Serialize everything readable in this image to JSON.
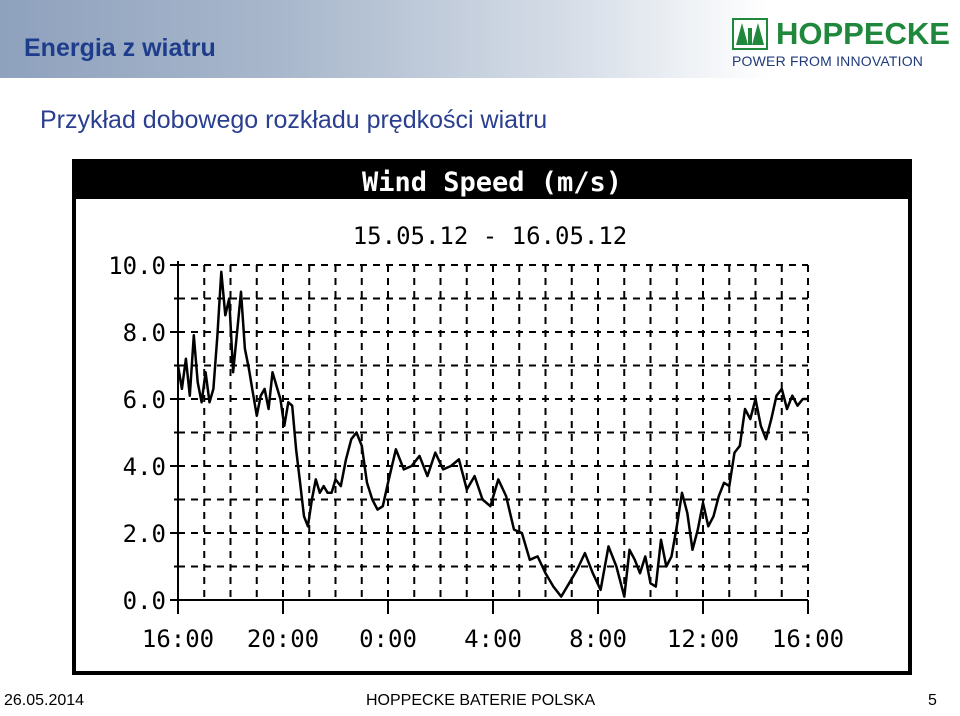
{
  "header": {
    "title": "Energia z wiatru",
    "logo_text": "HOPPECKE",
    "logo_tagline": "POWER FROM INNOVATION",
    "accent_color": "#1e3c8c",
    "logo_color": "#20883c"
  },
  "subtitle": "Przykład dobowego rozkładu prędkości wiatru",
  "footer": {
    "date": "26.05.2014",
    "center": "HOPPECKE BATERIE POLSKA",
    "page": "5"
  },
  "chart_data": {
    "type": "line",
    "title": "Wind Speed (m/s)",
    "subtitle": "15.05.12 - 16.05.12",
    "xlabel": "",
    "ylabel": "",
    "ylim": [
      0,
      10
    ],
    "xlim": [
      0,
      24
    ],
    "y_ticks": [
      "0.0",
      "2.0",
      "4.0",
      "6.0",
      "8.0",
      "10.0"
    ],
    "x_ticks": [
      "16:00",
      "20:00",
      "0:00",
      "4:00",
      "8:00",
      "12:00",
      "16:00"
    ],
    "grid": true,
    "x_hours_since_start": [
      0,
      0.15,
      0.3,
      0.45,
      0.6,
      0.75,
      0.9,
      1.05,
      1.2,
      1.35,
      1.5,
      1.65,
      1.8,
      1.95,
      2.1,
      2.25,
      2.4,
      2.55,
      2.7,
      2.85,
      3.0,
      3.15,
      3.3,
      3.45,
      3.6,
      3.75,
      3.9,
      4.05,
      4.2,
      4.35,
      4.5,
      4.65,
      4.8,
      4.95,
      5.1,
      5.25,
      5.4,
      5.55,
      5.7,
      5.85,
      6.0,
      6.2,
      6.4,
      6.6,
      6.8,
      7.0,
      7.2,
      7.4,
      7.6,
      7.8,
      8.0,
      8.3,
      8.6,
      8.9,
      9.2,
      9.5,
      9.8,
      10.1,
      10.4,
      10.7,
      11.0,
      11.3,
      11.6,
      11.9,
      12.2,
      12.5,
      12.8,
      13.1,
      13.4,
      13.7,
      14.0,
      14.3,
      14.6,
      14.9,
      15.2,
      15.5,
      15.8,
      16.1,
      16.4,
      16.7,
      17.0,
      17.2,
      17.4,
      17.6,
      17.8,
      18.0,
      18.2,
      18.4,
      18.6,
      18.8,
      19.0,
      19.2,
      19.4,
      19.6,
      19.8,
      20.0,
      20.2,
      20.4,
      20.6,
      20.8,
      21.0,
      21.2,
      21.4,
      21.6,
      21.8,
      22.0,
      22.2,
      22.4,
      22.6,
      22.8,
      23.0,
      23.2,
      23.4,
      23.6,
      23.8,
      24.0
    ],
    "y_values": [
      7.0,
      6.3,
      7.2,
      6.1,
      7.9,
      6.5,
      5.9,
      6.8,
      5.9,
      6.3,
      7.9,
      9.8,
      8.5,
      9.0,
      6.8,
      8.0,
      9.2,
      7.5,
      6.9,
      6.2,
      5.5,
      6.1,
      6.3,
      5.7,
      6.8,
      6.4,
      6.0,
      5.2,
      5.9,
      5.8,
      4.5,
      3.5,
      2.5,
      2.2,
      3.0,
      3.6,
      3.2,
      3.4,
      3.2,
      3.2,
      3.6,
      3.4,
      4.2,
      4.8,
      5.0,
      4.6,
      3.5,
      3.0,
      2.7,
      2.8,
      3.5,
      4.5,
      3.9,
      4.0,
      4.3,
      3.7,
      4.4,
      3.9,
      4.0,
      4.2,
      3.3,
      3.7,
      3.0,
      2.8,
      3.6,
      3.1,
      2.1,
      2.0,
      1.2,
      1.3,
      0.8,
      0.4,
      0.1,
      0.5,
      0.9,
      1.4,
      0.8,
      0.3,
      1.6,
      1.0,
      0.1,
      1.5,
      1.2,
      0.8,
      1.3,
      0.5,
      0.4,
      1.8,
      1.0,
      1.3,
      2.2,
      3.2,
      2.6,
      1.5,
      2.1,
      2.9,
      2.2,
      2.5,
      3.1,
      3.5,
      3.4,
      4.4,
      4.6,
      5.7,
      5.4,
      6.0,
      5.2,
      4.8,
      5.4,
      6.1,
      6.3,
      5.7,
      6.1,
      5.8,
      6.0,
      6.0
    ]
  }
}
